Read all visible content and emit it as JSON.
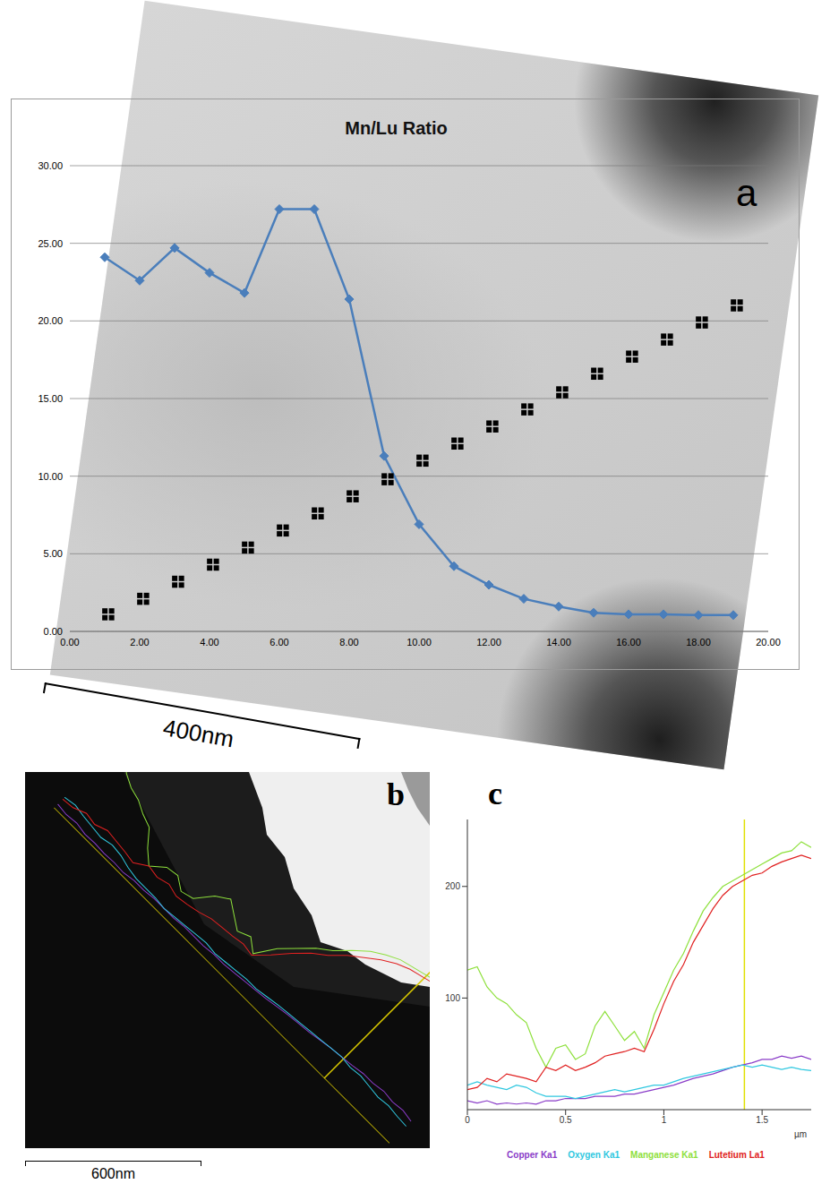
{
  "chart_data": [
    {
      "type": "line",
      "panel": "a",
      "title": "Mn/Lu Ratio",
      "scale_bar": "400nm",
      "x": [
        1,
        2,
        3,
        4,
        5,
        6,
        7,
        8,
        9,
        10,
        11,
        12,
        13,
        14,
        15,
        16,
        17,
        18,
        19
      ],
      "values": [
        24.1,
        22.6,
        24.7,
        23.1,
        21.8,
        27.2,
        27.2,
        21.4,
        11.3,
        6.9,
        4.2,
        3.0,
        2.1,
        1.6,
        1.2,
        1.1,
        1.1,
        1.05,
        1.05
      ],
      "color": "#4a7ebb",
      "marker": "diamond",
      "points": {
        "type": "scatter",
        "marker": "square",
        "color": "#000000",
        "x": [
          1.1,
          2.1,
          3.1,
          4.1,
          5.1,
          6.1,
          7.1,
          8.1,
          9.1,
          10.1,
          11.1,
          12.1,
          13.1,
          14.1,
          15.1,
          16.1,
          17.1,
          18.1,
          19.1
        ],
        "values": [
          1.1,
          2.1,
          3.2,
          4.3,
          5.4,
          6.5,
          7.6,
          8.7,
          9.8,
          11.0,
          12.1,
          13.2,
          14.3,
          15.4,
          16.6,
          17.7,
          18.8,
          19.9,
          21.0
        ]
      },
      "xlim": [
        0,
        20
      ],
      "xticks": [
        {
          "value": 0,
          "label": "0.00"
        },
        {
          "value": 2,
          "label": "2.00"
        },
        {
          "value": 4,
          "label": "4.00"
        },
        {
          "value": 6,
          "label": "6.00"
        },
        {
          "value": 8,
          "label": "8.00"
        },
        {
          "value": 10,
          "label": "10.00"
        },
        {
          "value": 12,
          "label": "12.00"
        },
        {
          "value": 14,
          "label": "14.00"
        },
        {
          "value": 16,
          "label": "16.00"
        },
        {
          "value": 18,
          "label": "18.00"
        },
        {
          "value": 20,
          "label": "20.00"
        }
      ],
      "ylim": [
        0,
        30
      ],
      "yticks": [
        {
          "value": 0,
          "label": "0.00"
        },
        {
          "value": 5,
          "label": "5.00"
        },
        {
          "value": 10,
          "label": "10.00"
        },
        {
          "value": 15,
          "label": "15.00"
        },
        {
          "value": 20,
          "label": "20.00"
        },
        {
          "value": 25,
          "label": "25.00"
        },
        {
          "value": 30,
          "label": "30.00"
        }
      ],
      "grid": true
    },
    {
      "type": "image",
      "panel": "b",
      "scale_bar": "600nm"
    },
    {
      "type": "line",
      "panel": "c",
      "x_label": "µm",
      "x": [
        0,
        0.05,
        0.1,
        0.15,
        0.2,
        0.25,
        0.3,
        0.35,
        0.4,
        0.45,
        0.5,
        0.55,
        0.6,
        0.65,
        0.7,
        0.75,
        0.8,
        0.85,
        0.9,
        0.95,
        1.0,
        1.05,
        1.1,
        1.15,
        1.2,
        1.25,
        1.3,
        1.35,
        1.4,
        1.45,
        1.5,
        1.55,
        1.6,
        1.65,
        1.7,
        1.75
      ],
      "series": [
        {
          "name": "Copper Ka1",
          "color": "#8a3cc8",
          "values": [
            8,
            6,
            8,
            5,
            6,
            5,
            6,
            5,
            8,
            8,
            10,
            10,
            10,
            12,
            12,
            12,
            14,
            14,
            16,
            18,
            20,
            22,
            25,
            28,
            30,
            32,
            35,
            38,
            40,
            42,
            45,
            45,
            48,
            46,
            48,
            45
          ]
        },
        {
          "name": "Oxygen Ka1",
          "color": "#30c8e0",
          "values": [
            22,
            25,
            22,
            20,
            18,
            22,
            20,
            15,
            12,
            12,
            12,
            10,
            12,
            14,
            16,
            18,
            16,
            18,
            20,
            22,
            22,
            25,
            28,
            30,
            32,
            34,
            36,
            38,
            40,
            38,
            40,
            38,
            36,
            38,
            36,
            35
          ]
        },
        {
          "name": "Manganese Ka1",
          "color": "#8ee03c",
          "values": [
            125,
            128,
            110,
            100,
            95,
            85,
            78,
            55,
            38,
            55,
            58,
            45,
            50,
            75,
            88,
            75,
            62,
            70,
            55,
            85,
            105,
            125,
            140,
            160,
            178,
            190,
            200,
            205,
            210,
            215,
            220,
            225,
            230,
            232,
            240,
            235
          ]
        },
        {
          "name": "Lutetium La1",
          "color": "#e02020",
          "values": [
            18,
            20,
            28,
            25,
            32,
            30,
            28,
            25,
            38,
            35,
            40,
            35,
            38,
            42,
            48,
            50,
            52,
            55,
            52,
            72,
            95,
            115,
            130,
            150,
            165,
            180,
            192,
            200,
            205,
            210,
            212,
            218,
            222,
            225,
            228,
            225
          ]
        }
      ],
      "cursor": 1.41,
      "xlim": [
        0,
        1.75
      ],
      "xticks": [
        0,
        0.5,
        1,
        1.5
      ],
      "ylim": [
        0,
        260
      ],
      "yticks": [
        100,
        200
      ],
      "legend": "bottom"
    }
  ]
}
